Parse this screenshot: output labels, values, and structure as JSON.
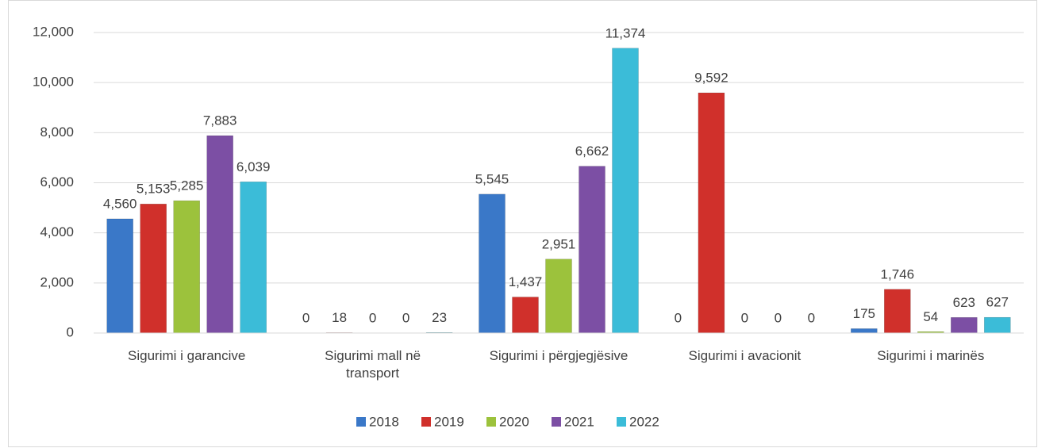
{
  "chart_data": {
    "type": "bar",
    "categories": [
      "Sigurimi i garancive",
      "Sigurimi mall në transport",
      "Sigurimi i përgjegjësive",
      "Sigurimi i avacionit",
      "Sigurimi i marinës"
    ],
    "series": [
      {
        "name": "2018",
        "color": "#3a78c8",
        "values": [
          4560,
          0,
          5545,
          0,
          175
        ],
        "value_labels": [
          "4,560",
          "0",
          "5,545",
          "0",
          "175"
        ]
      },
      {
        "name": "2019",
        "color": "#d0302b",
        "values": [
          5153,
          18,
          1437,
          9592,
          1746
        ],
        "value_labels": [
          "5,153",
          "18",
          "1,437",
          "9,592",
          "1,746"
        ]
      },
      {
        "name": "2020",
        "color": "#9cc23c",
        "values": [
          5285,
          0,
          2951,
          0,
          54
        ],
        "value_labels": [
          "5,285",
          "0",
          "2,951",
          "0",
          "54"
        ]
      },
      {
        "name": "2021",
        "color": "#7c4fa4",
        "values": [
          7883,
          0,
          6662,
          0,
          623
        ],
        "value_labels": [
          "7,883",
          "0",
          "6,662",
          "0",
          "623"
        ]
      },
      {
        "name": "2022",
        "color": "#3bbcd8",
        "values": [
          6039,
          23,
          11374,
          0,
          627
        ],
        "value_labels": [
          "6,039",
          "23",
          "11,374",
          "0",
          "627"
        ]
      }
    ],
    "ylim": [
      0,
      12000
    ],
    "yticks": [
      0,
      {
        "value": 2000,
        "label": "2,000"
      },
      {
        "value": 4000,
        "label": "4,000"
      },
      {
        "value": 6000,
        "label": "6,000"
      },
      {
        "value": 8000,
        "label": "8,000"
      },
      {
        "value": 10000,
        "label": "10,000"
      },
      {
        "value": 12000,
        "label": "12,000"
      }
    ],
    "grid": true,
    "legend": "bottom"
  }
}
